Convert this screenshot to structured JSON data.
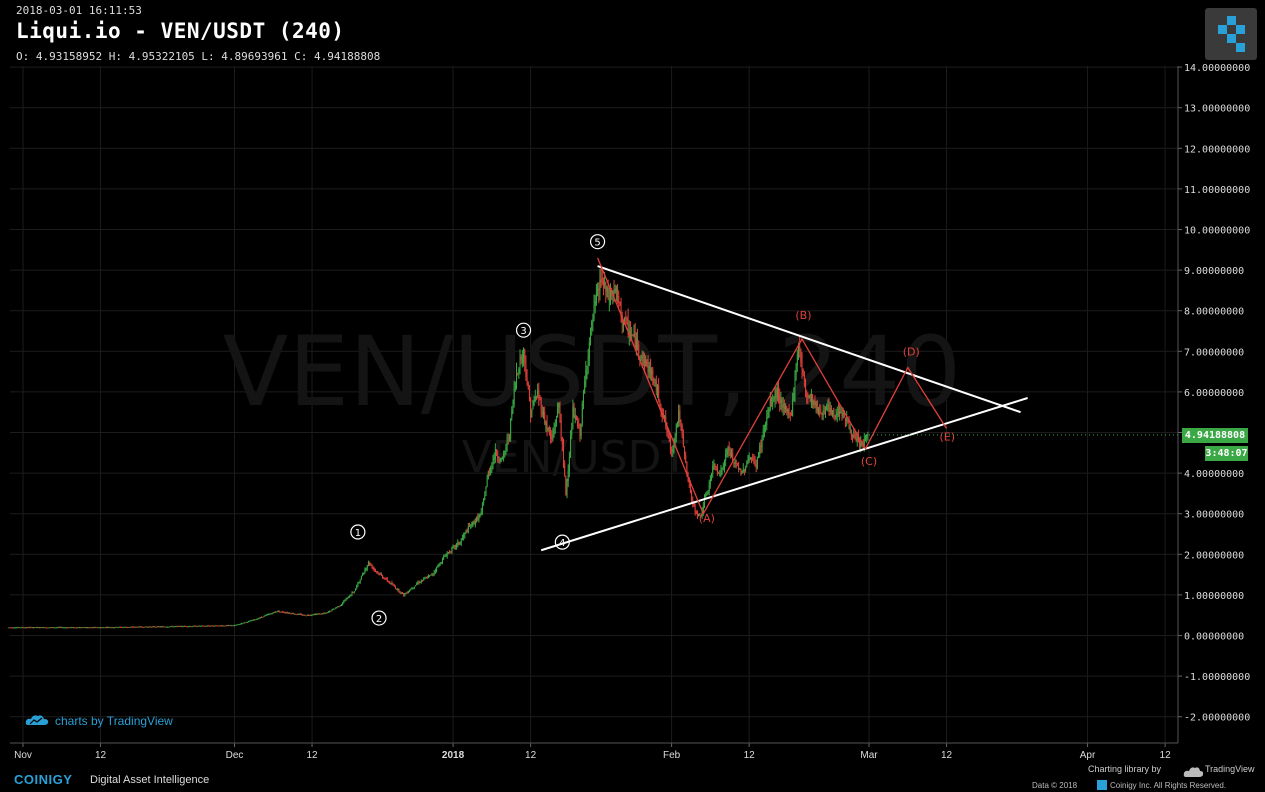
{
  "header": {
    "datetime": "2018-03-01 16:11:53",
    "title": "Liqui.io - VEN/USDT (240)",
    "ohlc": "O: 4.93158952 H: 4.95322105 L: 4.89693961 C: 4.94188808"
  },
  "watermark": {
    "main": "VEN/USDT, 240",
    "sub": "VEN/USDT"
  },
  "price_tag": {
    "last": "4.94188808",
    "countdown": "3:48:07"
  },
  "tv_credit": "charts by TradingView",
  "footer": {
    "brand": "COINIGY",
    "tagline": "Digital Asset Intelligence",
    "charting": "Charting library by",
    "tv": "TradingView",
    "data": "Data © 2018",
    "copy": "Coinigy Inc. All Rights Reserved."
  },
  "colors": {
    "up": "#3aa845",
    "down": "#e0403a",
    "grid": "#1c1c1c",
    "wave": "#ffffff",
    "correction": "#e0403a",
    "accent": "#2a9fd6"
  },
  "chart_data": {
    "type": "candlestick",
    "y_ticks": [
      "-2.00000000",
      "-1.00000000",
      "0.00000000",
      "1.00000000",
      "2.00000000",
      "3.00000000",
      "4.00000000",
      "5.00000000",
      "6.00000000",
      "7.00000000",
      "8.00000000",
      "9.00000000",
      "10.00000000",
      "11.00000000",
      "12.00000000",
      "13.00000000",
      "14.00000000"
    ],
    "ylim": [
      -2.2,
      14.1
    ],
    "x_ticks": [
      {
        "label": "Nov",
        "day": 0,
        "bold": false
      },
      {
        "label": "12",
        "day": 11,
        "bold": false
      },
      {
        "label": "Dec",
        "day": 30,
        "bold": false
      },
      {
        "label": "12",
        "day": 41,
        "bold": false
      },
      {
        "label": "2018",
        "day": 61,
        "bold": true
      },
      {
        "label": "12",
        "day": 72,
        "bold": false
      },
      {
        "label": "Feb",
        "day": 92,
        "bold": false
      },
      {
        "label": "12",
        "day": 103,
        "bold": false
      },
      {
        "label": "Mar",
        "day": 120,
        "bold": false
      },
      {
        "label": "12",
        "day": 131,
        "bold": false
      },
      {
        "label": "Apr",
        "day": 151,
        "bold": false
      },
      {
        "label": "12",
        "day": 162,
        "bold": false
      }
    ],
    "price_path": [
      [
        -2,
        0.2
      ],
      [
        10,
        0.2
      ],
      [
        20,
        0.22
      ],
      [
        30,
        0.25
      ],
      [
        33,
        0.4
      ],
      [
        36,
        0.6
      ],
      [
        40,
        0.5
      ],
      [
        43,
        0.55
      ],
      [
        45,
        0.75
      ],
      [
        47,
        1.1
      ],
      [
        49,
        1.8
      ],
      [
        50,
        1.6
      ],
      [
        52,
        1.3
      ],
      [
        54,
        1.0
      ],
      [
        56,
        1.3
      ],
      [
        58,
        1.5
      ],
      [
        60,
        2.0
      ],
      [
        62,
        2.3
      ],
      [
        63,
        2.6
      ],
      [
        65,
        3.0
      ],
      [
        66,
        4.0
      ],
      [
        67,
        4.5
      ],
      [
        68,
        4.3
      ],
      [
        69,
        5.0
      ],
      [
        70,
        6.5
      ],
      [
        71,
        7.0
      ],
      [
        72,
        5.5
      ],
      [
        73,
        6.0
      ],
      [
        74,
        5.3
      ],
      [
        75,
        4.8
      ],
      [
        76,
        5.7
      ],
      [
        77,
        3.5
      ],
      [
        78,
        5.5
      ],
      [
        79,
        5.0
      ],
      [
        80,
        6.8
      ],
      [
        81,
        8.0
      ],
      [
        82,
        8.8
      ],
      [
        83,
        8.3
      ],
      [
        84,
        8.5
      ],
      [
        85,
        7.8
      ],
      [
        86,
        7.5
      ],
      [
        87,
        7.2
      ],
      [
        88,
        6.8
      ],
      [
        89,
        6.5
      ],
      [
        90,
        6.0
      ],
      [
        91,
        5.3
      ],
      [
        92,
        4.5
      ],
      [
        93,
        5.5
      ],
      [
        94,
        4.2
      ],
      [
        95,
        3.2
      ],
      [
        96,
        2.9
      ],
      [
        97,
        3.5
      ],
      [
        98,
        4.2
      ],
      [
        99,
        4.0
      ],
      [
        100,
        4.6
      ],
      [
        101,
        4.2
      ],
      [
        102,
        4.0
      ],
      [
        103,
        4.4
      ],
      [
        104,
        4.2
      ],
      [
        105,
        5.0
      ],
      [
        106,
        5.7
      ],
      [
        107,
        6.0
      ],
      [
        108,
        5.5
      ],
      [
        109,
        5.5
      ],
      [
        110,
        7.2
      ],
      [
        111,
        6.0
      ],
      [
        112,
        5.8
      ],
      [
        113,
        5.5
      ],
      [
        114,
        5.6
      ],
      [
        115,
        5.4
      ],
      [
        116,
        5.6
      ],
      [
        117,
        5.2
      ],
      [
        118,
        4.8
      ],
      [
        119,
        4.7
      ],
      [
        120,
        4.94
      ]
    ],
    "wave_labels": [
      {
        "label": "1",
        "day": 47.5,
        "price": 2.55
      },
      {
        "label": "2",
        "day": 50.5,
        "price": 0.43
      },
      {
        "label": "3",
        "day": 71.0,
        "price": 7.52
      },
      {
        "label": "4",
        "day": 76.5,
        "price": 2.3
      },
      {
        "label": "5",
        "day": 81.5,
        "price": 9.7
      }
    ],
    "correction_labels": [
      {
        "label": "(A)",
        "day": 97.0,
        "price": 2.8
      },
      {
        "label": "(B)",
        "day": 110.7,
        "price": 7.8
      },
      {
        "label": "(C)",
        "day": 120.0,
        "price": 4.2
      },
      {
        "label": "(D)",
        "day": 126.0,
        "price": 6.9
      },
      {
        "label": "(E)",
        "day": 131.1,
        "price": 4.8
      }
    ],
    "correction_path": [
      [
        81.5,
        9.3
      ],
      [
        96.5,
        3.0
      ],
      [
        110.5,
        7.3
      ],
      [
        119.5,
        4.6
      ],
      [
        125.5,
        6.6
      ],
      [
        131.0,
        5.1
      ]
    ],
    "triangle_upper": [
      [
        81.5,
        9.1
      ],
      [
        141.5,
        5.5
      ]
    ],
    "triangle_lower": [
      [
        73.5,
        2.1
      ],
      [
        142.5,
        5.85
      ]
    ]
  }
}
